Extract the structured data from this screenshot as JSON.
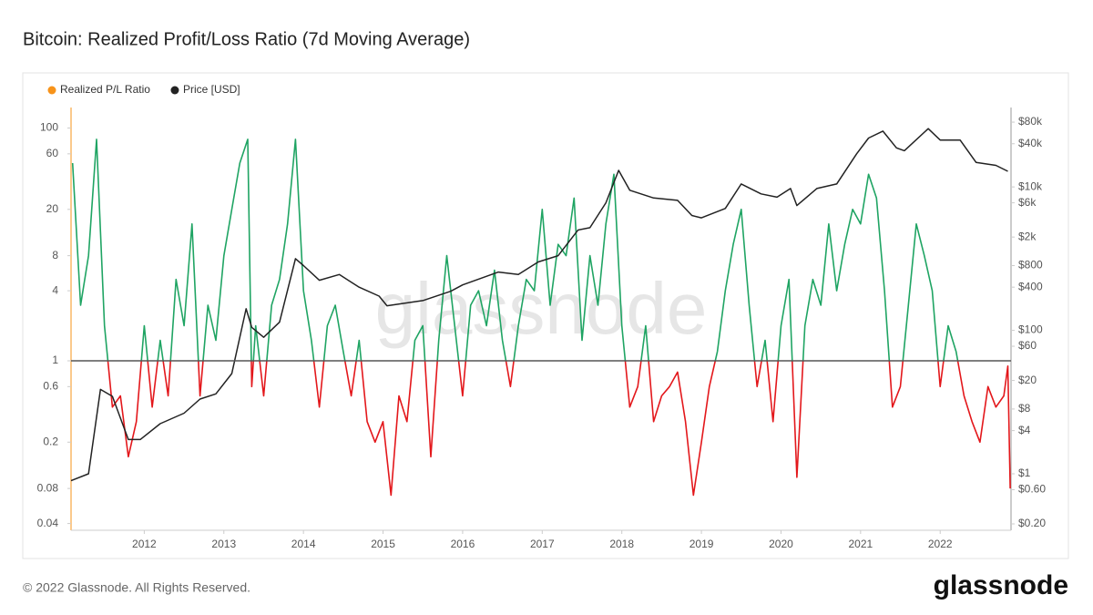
{
  "chart_data": {
    "type": "line",
    "title": "Bitcoin: Realized Profit/Loss Ratio (7d Moving Average)",
    "watermark": "glassnode",
    "footer": "© 2022 Glassnode. All Rights Reserved.",
    "brand": "glassnode",
    "log_scale": true,
    "threshold": 1,
    "xlim": [
      2011.08,
      2022.89
    ],
    "xticks": [
      2012,
      2013,
      2014,
      2015,
      2016,
      2017,
      2018,
      2019,
      2020,
      2021,
      2022
    ],
    "ylim": [
      0.035,
      150
    ],
    "yticks": [
      0.04,
      0.08,
      0.2,
      0.6,
      1,
      4,
      8,
      20,
      60,
      100
    ],
    "y2lim": [
      0.163,
      128000
    ],
    "y2ticks": [
      {
        "value": 0.2,
        "label": "$0.20"
      },
      {
        "value": 0.6,
        "label": "$0.60"
      },
      {
        "value": 1,
        "label": "$1"
      },
      {
        "value": 4,
        "label": "$4"
      },
      {
        "value": 8,
        "label": "$8"
      },
      {
        "value": 20,
        "label": "$20"
      },
      {
        "value": 60,
        "label": "$60"
      },
      {
        "value": 100,
        "label": "$100"
      },
      {
        "value": 400,
        "label": "$400"
      },
      {
        "value": 800,
        "label": "$800"
      },
      {
        "value": 2000,
        "label": "$2k"
      },
      {
        "value": 6000,
        "label": "$6k"
      },
      {
        "value": 10000,
        "label": "$10k"
      },
      {
        "value": 40000,
        "label": "$40k"
      },
      {
        "value": 80000,
        "label": "$80k"
      }
    ],
    "series": [
      {
        "name": "Realized P/L Ratio",
        "color": "#f7931a",
        "above_color": "#1fa463",
        "below_color": "#e3171b",
        "x": [
          2011.1,
          2011.2,
          2011.3,
          2011.4,
          2011.5,
          2011.6,
          2011.7,
          2011.8,
          2011.9,
          2012.0,
          2012.1,
          2012.2,
          2012.3,
          2012.4,
          2012.5,
          2012.6,
          2012.7,
          2012.8,
          2012.9,
          2013.0,
          2013.1,
          2013.2,
          2013.3,
          2013.35,
          2013.4,
          2013.5,
          2013.6,
          2013.7,
          2013.8,
          2013.9,
          2014.0,
          2014.1,
          2014.2,
          2014.3,
          2014.4,
          2014.5,
          2014.6,
          2014.7,
          2014.8,
          2014.9,
          2015.0,
          2015.1,
          2015.2,
          2015.3,
          2015.4,
          2015.5,
          2015.6,
          2015.7,
          2015.8,
          2015.9,
          2016.0,
          2016.1,
          2016.2,
          2016.3,
          2016.4,
          2016.5,
          2016.6,
          2016.7,
          2016.8,
          2016.9,
          2017.0,
          2017.1,
          2017.2,
          2017.3,
          2017.4,
          2017.5,
          2017.6,
          2017.7,
          2017.8,
          2017.9,
          2018.0,
          2018.1,
          2018.2,
          2018.3,
          2018.4,
          2018.5,
          2018.6,
          2018.7,
          2018.8,
          2018.9,
          2019.0,
          2019.1,
          2019.2,
          2019.3,
          2019.4,
          2019.5,
          2019.6,
          2019.7,
          2019.8,
          2019.9,
          2020.0,
          2020.1,
          2020.2,
          2020.3,
          2020.4,
          2020.5,
          2020.6,
          2020.7,
          2020.8,
          2020.9,
          2021.0,
          2021.1,
          2021.2,
          2021.3,
          2021.4,
          2021.5,
          2021.6,
          2021.7,
          2021.8,
          2021.9,
          2022.0,
          2022.1,
          2022.2,
          2022.3,
          2022.4,
          2022.5,
          2022.6,
          2022.7,
          2022.8,
          2022.85,
          2022.88
        ],
        "values": [
          50,
          3,
          8,
          80,
          2,
          0.4,
          0.5,
          0.15,
          0.3,
          2,
          0.4,
          1.5,
          0.5,
          5,
          2,
          15,
          0.5,
          3,
          1.5,
          8,
          20,
          50,
          80,
          0.6,
          2,
          0.5,
          3,
          5,
          15,
          80,
          4,
          1.5,
          0.4,
          2,
          3,
          1.2,
          0.5,
          1.5,
          0.3,
          0.2,
          0.3,
          0.07,
          0.5,
          0.3,
          1.5,
          2,
          0.15,
          1.5,
          8,
          2,
          0.5,
          3,
          4,
          2,
          6,
          1.5,
          0.6,
          2,
          5,
          4,
          20,
          3,
          10,
          8,
          25,
          1.5,
          8,
          3,
          15,
          40,
          2,
          0.4,
          0.6,
          2,
          0.3,
          0.5,
          0.6,
          0.8,
          0.3,
          0.07,
          0.2,
          0.6,
          1.2,
          4,
          10,
          20,
          3,
          0.6,
          1.5,
          0.3,
          2,
          5,
          0.1,
          2,
          5,
          3,
          15,
          4,
          10,
          20,
          15,
          40,
          25,
          4,
          0.4,
          0.6,
          3,
          15,
          8,
          4,
          0.6,
          2,
          1.2,
          0.5,
          0.3,
          0.2,
          0.6,
          0.4,
          0.5,
          0.9,
          0.08
        ]
      },
      {
        "name": "Price [USD]",
        "color": "#222222",
        "axis": "y2",
        "x": [
          2011.08,
          2011.3,
          2011.45,
          2011.6,
          2011.8,
          2011.95,
          2012.2,
          2012.5,
          2012.7,
          2012.9,
          2013.1,
          2013.28,
          2013.35,
          2013.5,
          2013.7,
          2013.9,
          2014.0,
          2014.2,
          2014.45,
          2014.7,
          2014.95,
          2015.05,
          2015.5,
          2015.85,
          2016.0,
          2016.45,
          2016.7,
          2016.95,
          2017.2,
          2017.45,
          2017.6,
          2017.8,
          2017.96,
          2018.1,
          2018.4,
          2018.7,
          2018.88,
          2019.0,
          2019.3,
          2019.5,
          2019.75,
          2019.95,
          2020.12,
          2020.2,
          2020.45,
          2020.7,
          2020.95,
          2021.1,
          2021.28,
          2021.45,
          2021.55,
          2021.85,
          2022.0,
          2022.25,
          2022.45,
          2022.7,
          2022.85
        ],
        "values": [
          0.8,
          1,
          15,
          12,
          3,
          3,
          5,
          7,
          11,
          13,
          25,
          200,
          110,
          80,
          130,
          1000,
          800,
          500,
          600,
          400,
          300,
          220,
          260,
          350,
          430,
          650,
          600,
          900,
          1100,
          2500,
          2700,
          6000,
          17000,
          9000,
          7000,
          6500,
          4000,
          3700,
          5000,
          11000,
          8000,
          7200,
          9500,
          5500,
          9500,
          11000,
          29000,
          48000,
          60000,
          35000,
          32000,
          65000,
          45000,
          45000,
          22000,
          20000,
          16500
        ]
      }
    ]
  }
}
